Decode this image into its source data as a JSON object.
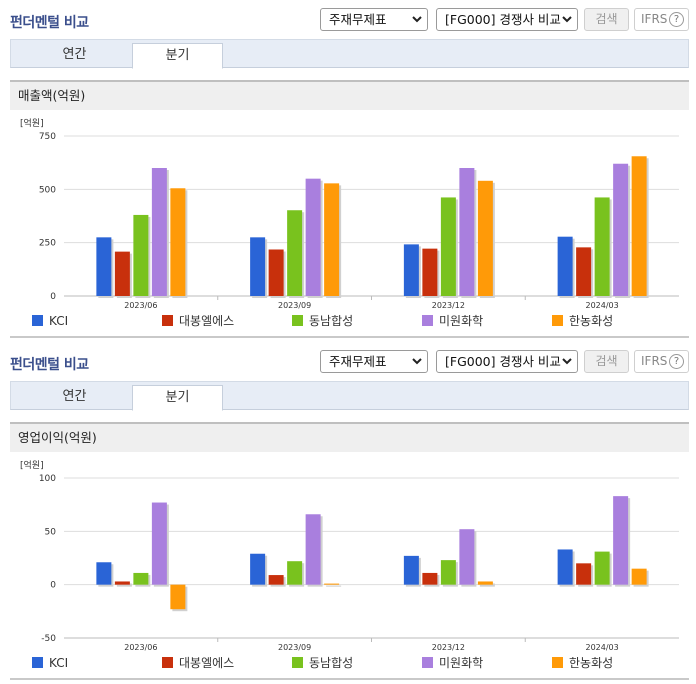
{
  "sections": [
    {
      "title": "펀더멘털 비교",
      "statement_select": "주재무제표",
      "peer_select": "[FG000] 경쟁사 비교",
      "search_button": "검색",
      "ifrs_button": "IFRS",
      "help_icon": "?",
      "tabs": [
        "연간",
        "분기"
      ],
      "active_tab": "분기",
      "chart_title": "매출액(억원)"
    },
    {
      "title": "펀더멘털 비교",
      "statement_select": "주재무제표",
      "peer_select": "[FG000] 경쟁사 비교",
      "search_button": "검색",
      "ifrs_button": "IFRS",
      "help_icon": "?",
      "tabs": [
        "연간",
        "분기"
      ],
      "active_tab": "분기",
      "chart_title": "영업이익(억원)"
    }
  ],
  "colors": {
    "KCI": "#2a64d6",
    "대봉엘에스": "#c8300c",
    "동남합성": "#79c21e",
    "미원화학": "#a97fde",
    "한농화성": "#ff9a08"
  },
  "chart_data": [
    {
      "type": "bar",
      "title": "매출액(억원)",
      "unit_label": "[억원]",
      "categories": [
        "2023/06",
        "2023/09",
        "2023/12",
        "2024/03"
      ],
      "series": [
        {
          "name": "KCI",
          "values": [
            275,
            275,
            242,
            278
          ]
        },
        {
          "name": "대봉엘에스",
          "values": [
            208,
            218,
            222,
            228
          ]
        },
        {
          "name": "동남합성",
          "values": [
            380,
            402,
            462,
            462
          ]
        },
        {
          "name": "미원화학",
          "values": [
            600,
            550,
            600,
            620
          ]
        },
        {
          "name": "한농화성",
          "values": [
            505,
            528,
            540,
            655
          ]
        }
      ],
      "ylim": [
        0,
        750
      ],
      "yticks": [
        0,
        250,
        500,
        750
      ],
      "grid": true,
      "legend": "bottom"
    },
    {
      "type": "bar",
      "title": "영업이익(억원)",
      "unit_label": "[억원]",
      "categories": [
        "2023/06",
        "2023/09",
        "2023/12",
        "2024/03"
      ],
      "series": [
        {
          "name": "KCI",
          "values": [
            21,
            29,
            27,
            33
          ]
        },
        {
          "name": "대봉엘에스",
          "values": [
            3,
            9,
            11,
            20
          ]
        },
        {
          "name": "동남합성",
          "values": [
            11,
            22,
            23,
            31
          ]
        },
        {
          "name": "미원화학",
          "values": [
            77,
            66,
            52,
            83
          ]
        },
        {
          "name": "한농화성",
          "values": [
            -23,
            1,
            3,
            15
          ]
        }
      ],
      "ylim": [
        -50,
        100
      ],
      "yticks": [
        -50,
        0,
        50,
        100
      ],
      "grid": true,
      "legend": "bottom"
    }
  ]
}
